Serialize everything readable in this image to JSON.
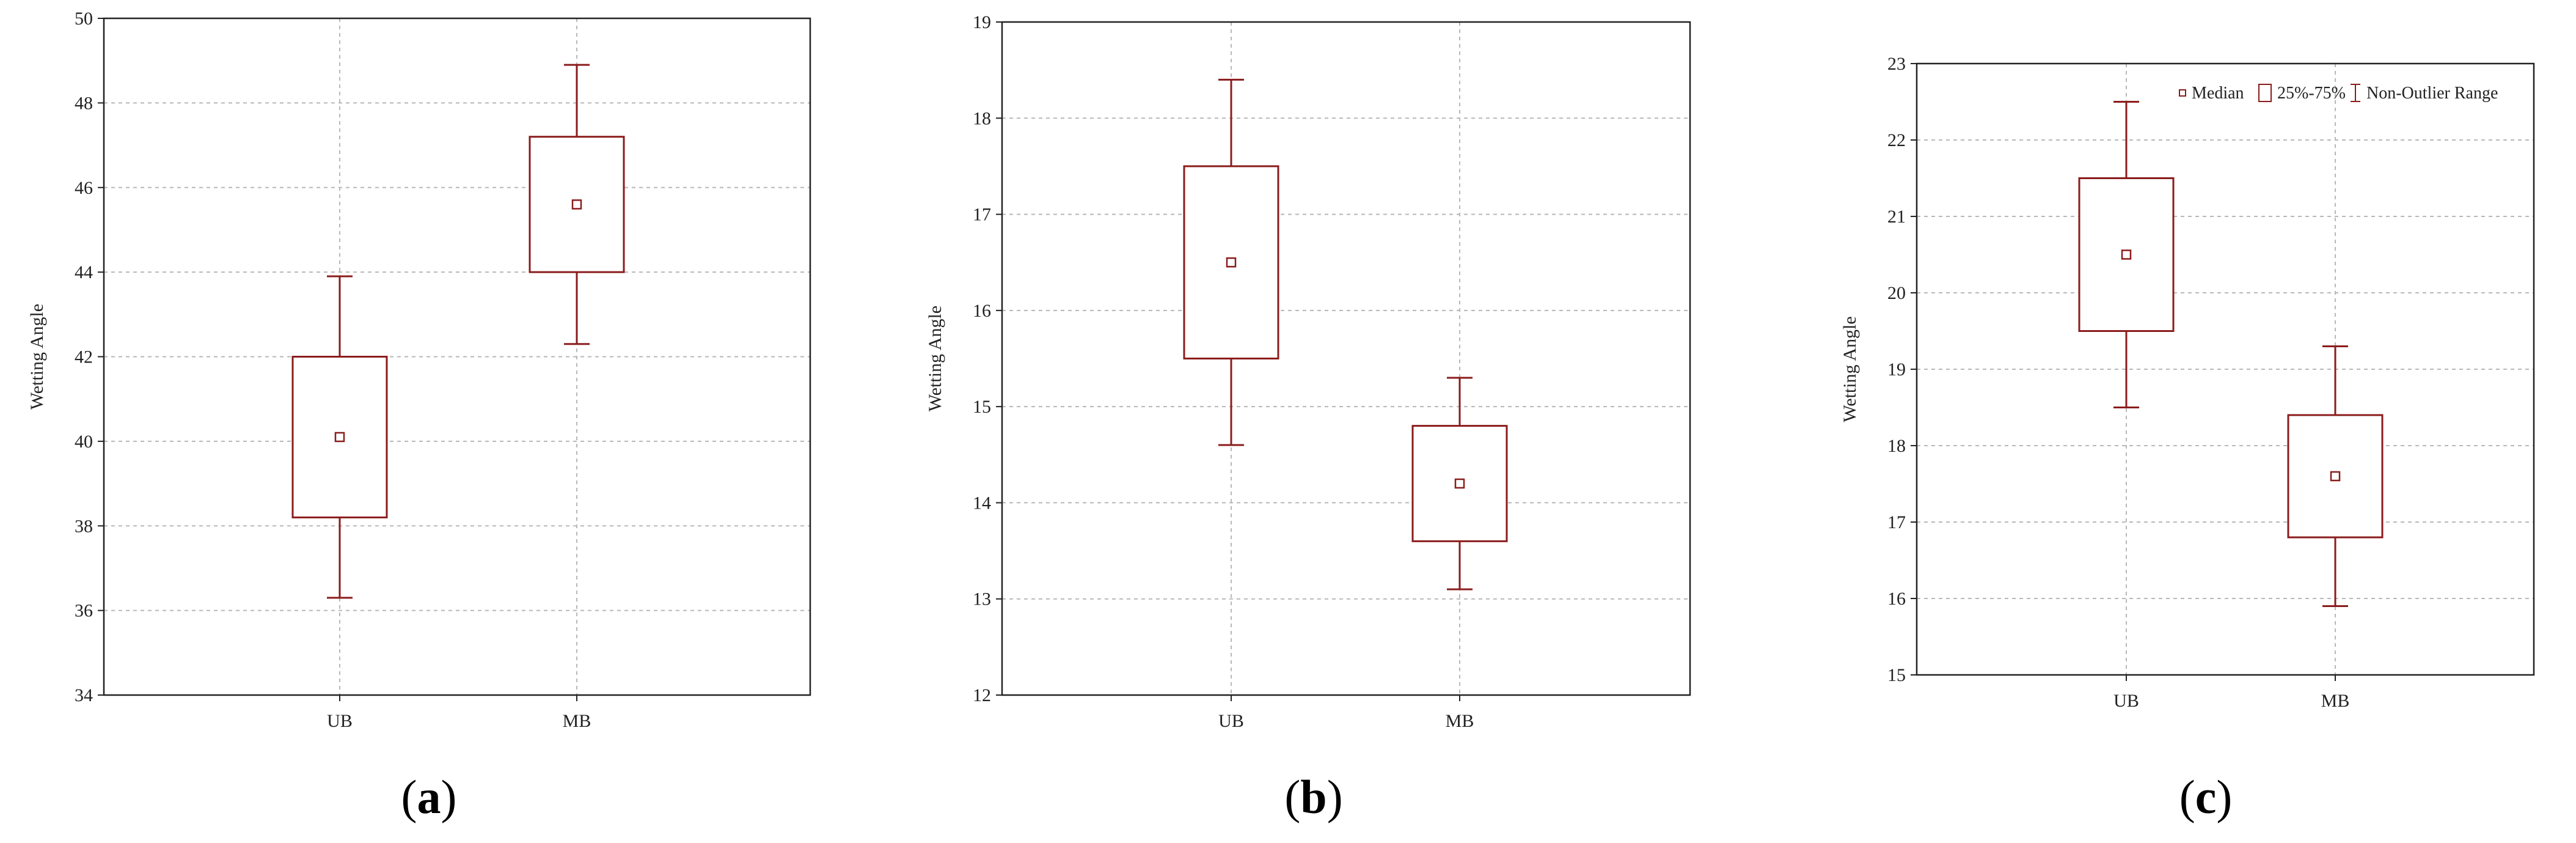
{
  "colors": {
    "box": "#8b1c1c",
    "grid": "#b8b8b8",
    "frame": "#222222"
  },
  "chart_data": [
    {
      "type": "box",
      "panel_label": "a",
      "ylabel": "Wetting Angle",
      "xlabel": "",
      "categories": [
        "UB",
        "MB"
      ],
      "ylim": [
        34,
        50
      ],
      "yticks": [
        34,
        36,
        38,
        40,
        42,
        44,
        46,
        48,
        50
      ],
      "grid": true,
      "boxes": [
        {
          "category": "UB",
          "median": 40.1,
          "q1": 38.2,
          "q3": 42.0,
          "whisker_low": 36.3,
          "whisker_high": 43.9
        },
        {
          "category": "MB",
          "median": 45.6,
          "q1": 44.0,
          "q3": 47.2,
          "whisker_low": 42.3,
          "whisker_high": 48.9
        }
      ]
    },
    {
      "type": "box",
      "panel_label": "b",
      "ylabel": "Wetting Angle",
      "xlabel": "",
      "categories": [
        "UB",
        "MB"
      ],
      "ylim": [
        12,
        19
      ],
      "yticks": [
        12,
        13,
        14,
        15,
        16,
        17,
        18,
        19
      ],
      "grid": true,
      "boxes": [
        {
          "category": "UB",
          "median": 16.5,
          "q1": 15.5,
          "q3": 17.5,
          "whisker_low": 14.6,
          "whisker_high": 18.4
        },
        {
          "category": "MB",
          "median": 14.2,
          "q1": 13.6,
          "q3": 14.8,
          "whisker_low": 13.1,
          "whisker_high": 15.3
        }
      ]
    },
    {
      "type": "box",
      "panel_label": "c",
      "ylabel": "Wetting Angle",
      "xlabel": "",
      "categories": [
        "UB",
        "MB"
      ],
      "ylim": [
        15,
        23
      ],
      "yticks": [
        15,
        16,
        17,
        18,
        19,
        20,
        21,
        22,
        23
      ],
      "grid": true,
      "legend": {
        "placement": "top-right",
        "entries": [
          "Median",
          "25%-75%",
          "Non-Outlier Range"
        ]
      },
      "boxes": [
        {
          "category": "UB",
          "median": 20.5,
          "q1": 19.5,
          "q3": 21.5,
          "whisker_low": 18.5,
          "whisker_high": 22.5
        },
        {
          "category": "MB",
          "median": 17.6,
          "q1": 16.8,
          "q3": 18.4,
          "whisker_low": 15.9,
          "whisker_high": 19.3
        }
      ]
    }
  ]
}
